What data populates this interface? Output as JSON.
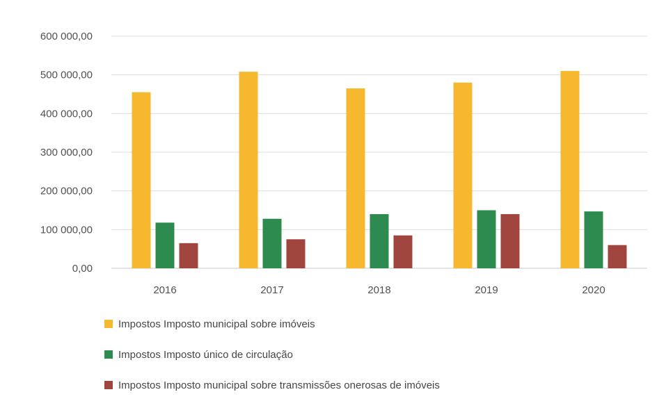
{
  "chart_data": {
    "type": "bar",
    "categories": [
      "2016",
      "2017",
      "2018",
      "2019",
      "2020"
    ],
    "series": [
      {
        "name": "Impostos Imposto municipal sobre imóveis",
        "color": "#F5B82E",
        "values": [
          455000,
          508000,
          465000,
          480000,
          510000
        ]
      },
      {
        "name": "Impostos Imposto único de circulação",
        "color": "#2E8B50",
        "values": [
          118000,
          128000,
          140000,
          150000,
          147000
        ]
      },
      {
        "name": "Impostos Imposto municipal sobre transmissões onerosas de imóveis",
        "color": "#A0453D",
        "values": [
          65000,
          75000,
          85000,
          140000,
          60000
        ]
      }
    ],
    "y_ticks": [
      "0,00",
      "100 000,00",
      "200 000,00",
      "300 000,00",
      "400 000,00",
      "500 000,00",
      "600 000,00"
    ],
    "ylim": [
      0,
      600000
    ],
    "grid": true,
    "legend_position": "bottom"
  }
}
